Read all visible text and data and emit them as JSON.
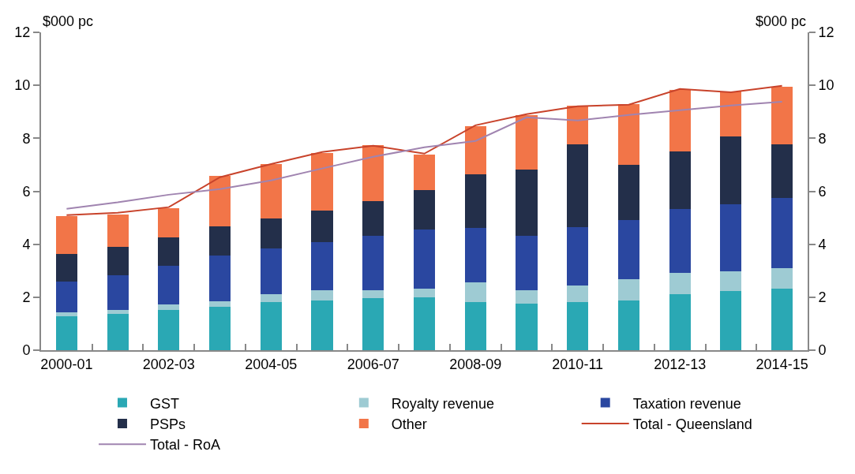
{
  "chart_data": {
    "type": "bar",
    "stacked": true,
    "ylabel": "$000 pc",
    "y2label": "$000 pc",
    "categories": [
      "2000-01",
      null,
      "2002-03",
      null,
      "2004-05",
      null,
      "2006-07",
      null,
      "2008-09",
      null,
      "2010-11",
      null,
      "2012-13",
      null,
      "2014-15"
    ],
    "series": [
      {
        "name": "GST",
        "color": "#2aa8b4",
        "values": [
          1.29,
          1.38,
          1.53,
          1.65,
          1.83,
          1.88,
          1.97,
          2.0,
          1.83,
          1.77,
          1.83,
          1.88,
          2.12,
          2.24,
          2.33
        ]
      },
      {
        "name": "Royalty revenue",
        "color": "#9ecbd3",
        "values": [
          0.13,
          0.15,
          0.21,
          0.21,
          0.27,
          0.39,
          0.3,
          0.33,
          0.74,
          0.5,
          0.62,
          0.81,
          0.81,
          0.75,
          0.78
        ]
      },
      {
        "name": "Taxation revenue",
        "color": "#2a47a0",
        "values": [
          1.18,
          1.31,
          1.45,
          1.72,
          1.75,
          1.82,
          2.06,
          2.23,
          2.05,
          2.06,
          2.2,
          2.23,
          2.41,
          2.53,
          2.64
        ]
      },
      {
        "name": "PSPs",
        "color": "#232f4a",
        "values": [
          1.04,
          1.07,
          1.08,
          1.1,
          1.13,
          1.19,
          1.3,
          1.49,
          2.03,
          2.5,
          3.13,
          2.08,
          2.17,
          2.56,
          2.03
        ]
      },
      {
        "name": "Other",
        "color": "#f27548",
        "values": [
          1.43,
          1.22,
          1.1,
          1.89,
          2.05,
          2.17,
          2.12,
          1.34,
          1.81,
          2.05,
          1.46,
          2.3,
          2.32,
          1.69,
          2.17
        ]
      },
      {
        "name": "Total - Queensland",
        "type": "line",
        "color": "#c8432b",
        "values": [
          5.1,
          5.19,
          5.4,
          6.53,
          7.03,
          7.48,
          7.72,
          7.42,
          8.49,
          8.91,
          9.21,
          9.27,
          9.86,
          9.74,
          9.98
        ]
      },
      {
        "name": "Total - RoA",
        "type": "line",
        "color": "#a084b0",
        "values": [
          5.34,
          5.58,
          5.87,
          6.08,
          6.41,
          6.86,
          7.3,
          7.66,
          7.9,
          8.79,
          8.67,
          8.88,
          9.06,
          9.24,
          9.38
        ]
      }
    ],
    "ylim": [
      0,
      12
    ],
    "yticks": [
      0,
      2,
      4,
      6,
      8,
      10,
      12
    ],
    "y2lim": [
      0,
      12
    ],
    "y2ticks": [
      0,
      2,
      4,
      6,
      8,
      10,
      12
    ],
    "grid": false,
    "legend": "bottom",
    "marker": "none",
    "line_style": "solid"
  }
}
